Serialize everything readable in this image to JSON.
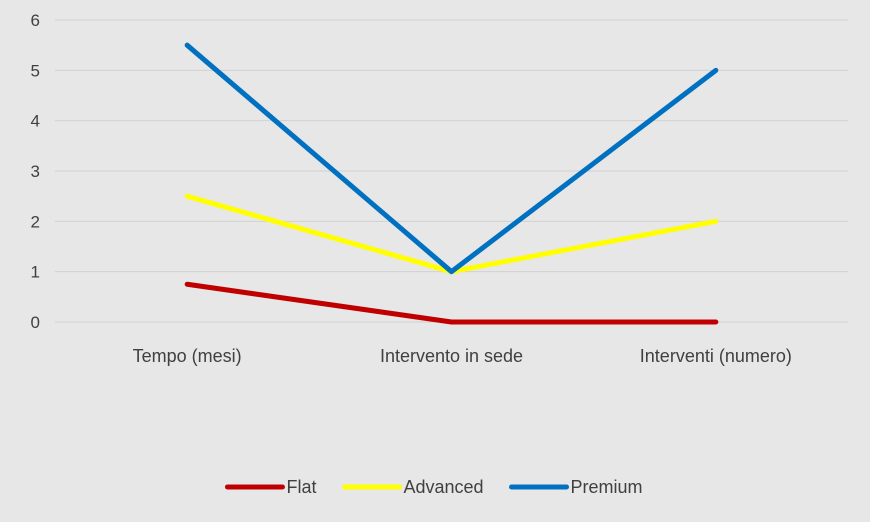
{
  "chart_data": {
    "type": "line",
    "title": "",
    "xlabel": "",
    "ylabel": "",
    "categories": [
      "Tempo (mesi)",
      "Intervento in sede",
      "Interventi (numero)"
    ],
    "series": [
      {
        "name": "Flat",
        "values": [
          0.75,
          0,
          0
        ],
        "color": "#c00000"
      },
      {
        "name": "Advanced",
        "values": [
          2.5,
          1,
          2
        ],
        "color": "#ffff00"
      },
      {
        "name": "Premium",
        "values": [
          5.5,
          1,
          5
        ],
        "color": "#0070c0"
      }
    ],
    "ylim": [
      0,
      6
    ],
    "yticks": [
      "0",
      "1",
      "2",
      "3",
      "4",
      "5",
      "6"
    ],
    "grid": true,
    "legend_position": "bottom"
  }
}
